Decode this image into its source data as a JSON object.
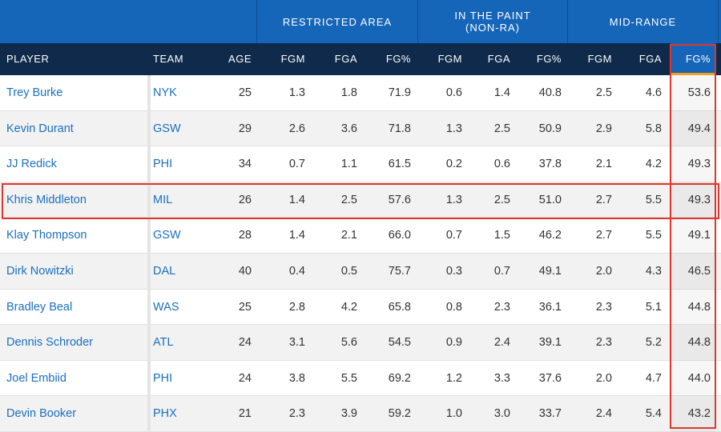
{
  "group_headers": [
    {
      "label": ""
    },
    {
      "label": "RESTRICTED AREA"
    },
    {
      "label": "IN THE PAINT\n(NON-RA)"
    },
    {
      "label": "MID-RANGE"
    },
    {
      "label": ""
    }
  ],
  "columns": [
    "PLAYER",
    "TEAM",
    "AGE",
    "FGM",
    "FGA",
    "FG%",
    "FGM",
    "FGA",
    "FG%",
    "FGM",
    "FGA",
    "FG%"
  ],
  "sorted_column": "FG%",
  "highlight_color": "#e0362c",
  "rows": [
    {
      "player": "Trey Burke",
      "team": "NYK",
      "age": "25",
      "ra_fgm": "1.3",
      "ra_fga": "1.8",
      "ra_pct": "71.9",
      "p_fgm": "0.6",
      "p_fga": "1.4",
      "p_pct": "40.8",
      "m_fgm": "2.5",
      "m_fga": "4.6",
      "m_pct": "53.6"
    },
    {
      "player": "Kevin Durant",
      "team": "GSW",
      "age": "29",
      "ra_fgm": "2.6",
      "ra_fga": "3.6",
      "ra_pct": "71.8",
      "p_fgm": "1.3",
      "p_fga": "2.5",
      "p_pct": "50.9",
      "m_fgm": "2.9",
      "m_fga": "5.8",
      "m_pct": "49.4"
    },
    {
      "player": "JJ Redick",
      "team": "PHI",
      "age": "34",
      "ra_fgm": "0.7",
      "ra_fga": "1.1",
      "ra_pct": "61.5",
      "p_fgm": "0.2",
      "p_fga": "0.6",
      "p_pct": "37.8",
      "m_fgm": "2.1",
      "m_fga": "4.2",
      "m_pct": "49.3"
    },
    {
      "player": "Khris Middleton",
      "team": "MIL",
      "age": "26",
      "ra_fgm": "1.4",
      "ra_fga": "2.5",
      "ra_pct": "57.6",
      "p_fgm": "1.3",
      "p_fga": "2.5",
      "p_pct": "51.0",
      "m_fgm": "2.7",
      "m_fga": "5.5",
      "m_pct": "49.3"
    },
    {
      "player": "Klay Thompson",
      "team": "GSW",
      "age": "28",
      "ra_fgm": "1.4",
      "ra_fga": "2.1",
      "ra_pct": "66.0",
      "p_fgm": "0.7",
      "p_fga": "1.5",
      "p_pct": "46.2",
      "m_fgm": "2.7",
      "m_fga": "5.5",
      "m_pct": "49.1"
    },
    {
      "player": "Dirk Nowitzki",
      "team": "DAL",
      "age": "40",
      "ra_fgm": "0.4",
      "ra_fga": "0.5",
      "ra_pct": "75.7",
      "p_fgm": "0.3",
      "p_fga": "0.7",
      "p_pct": "49.1",
      "m_fgm": "2.0",
      "m_fga": "4.3",
      "m_pct": "46.5"
    },
    {
      "player": "Bradley Beal",
      "team": "WAS",
      "age": "25",
      "ra_fgm": "2.8",
      "ra_fga": "4.2",
      "ra_pct": "65.8",
      "p_fgm": "0.8",
      "p_fga": "2.3",
      "p_pct": "36.1",
      "m_fgm": "2.3",
      "m_fga": "5.1",
      "m_pct": "44.8"
    },
    {
      "player": "Dennis Schroder",
      "team": "ATL",
      "age": "24",
      "ra_fgm": "3.1",
      "ra_fga": "5.6",
      "ra_pct": "54.5",
      "p_fgm": "0.9",
      "p_fga": "2.4",
      "p_pct": "39.1",
      "m_fgm": "2.3",
      "m_fga": "5.2",
      "m_pct": "44.8"
    },
    {
      "player": "Joel Embiid",
      "team": "PHI",
      "age": "24",
      "ra_fgm": "3.8",
      "ra_fga": "5.5",
      "ra_pct": "69.2",
      "p_fgm": "1.2",
      "p_fga": "3.3",
      "p_pct": "37.6",
      "m_fgm": "2.0",
      "m_fga": "4.7",
      "m_pct": "44.0"
    },
    {
      "player": "Devin Booker",
      "team": "PHX",
      "age": "21",
      "ra_fgm": "2.3",
      "ra_fga": "3.9",
      "ra_pct": "59.2",
      "p_fgm": "1.0",
      "p_fga": "3.0",
      "p_pct": "33.7",
      "m_fgm": "2.4",
      "m_fga": "5.4",
      "m_pct": "43.2"
    }
  ]
}
